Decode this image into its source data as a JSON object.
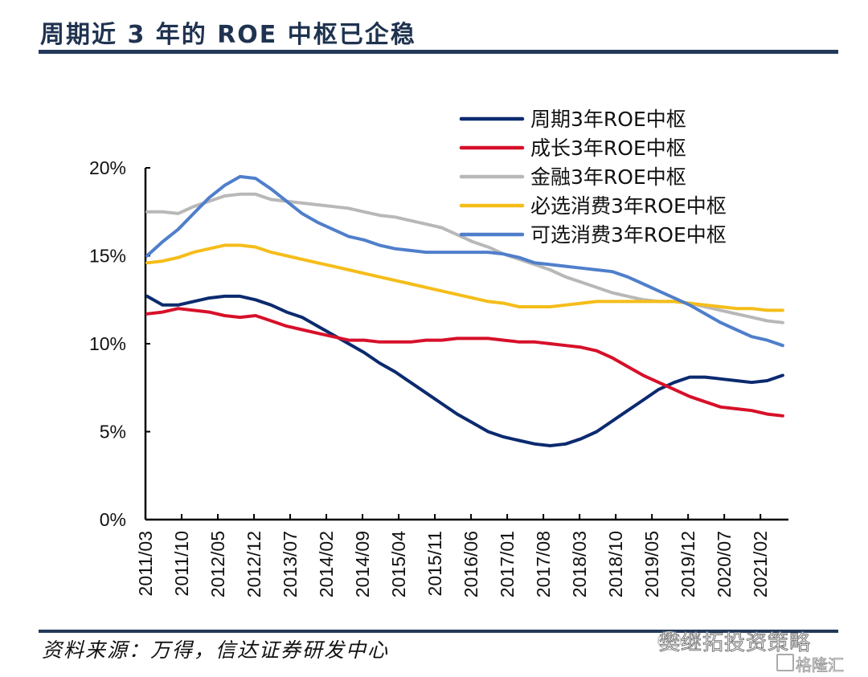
{
  "header": {
    "title": "周期近 3 年的 ROE 中枢已企稳"
  },
  "footer": {
    "source": "资料来源：万得，信达证券研发中心"
  },
  "watermark": {
    "account": "樊继拓投资策略",
    "site": "格隆汇"
  },
  "chart_data": {
    "type": "line",
    "title": "周期近 3 年的 ROE 中枢已企稳",
    "xlabel": "",
    "ylabel": "",
    "ylim": [
      0,
      20
    ],
    "yticks": [
      "0%",
      "5%",
      "10%",
      "15%",
      "20%"
    ],
    "ytick_values": [
      0,
      5,
      10,
      15,
      20
    ],
    "grid": false,
    "legend_position": "top-right",
    "x_tick_labels": [
      "2011/03",
      "2011/10",
      "2012/05",
      "2012/12",
      "2013/07",
      "2014/02",
      "2014/09",
      "2015/04",
      "2015/11",
      "2016/06",
      "2017/01",
      "2017/08",
      "2018/03",
      "2018/10",
      "2019/05",
      "2019/12",
      "2020/07",
      "2021/02"
    ],
    "x_tick_months": 7,
    "x": [
      "2011/03",
      "2011/06",
      "2011/09",
      "2011/12",
      "2012/03",
      "2012/06",
      "2012/09",
      "2012/12",
      "2013/03",
      "2013/06",
      "2013/09",
      "2013/12",
      "2014/03",
      "2014/06",
      "2014/09",
      "2014/12",
      "2015/03",
      "2015/06",
      "2015/09",
      "2015/12",
      "2016/03",
      "2016/06",
      "2016/09",
      "2016/12",
      "2017/03",
      "2017/06",
      "2017/09",
      "2017/12",
      "2018/03",
      "2018/06",
      "2018/09",
      "2018/12",
      "2019/03",
      "2019/06",
      "2019/09",
      "2019/12",
      "2020/03",
      "2020/06",
      "2020/09",
      "2020/12",
      "2021/03",
      "2021/06"
    ],
    "series": [
      {
        "name": "周期3年ROE中枢",
        "color": "#0b2a6f",
        "values": [
          12.7,
          12.2,
          12.2,
          12.4,
          12.6,
          12.7,
          12.7,
          12.5,
          12.2,
          11.8,
          11.5,
          11.0,
          10.5,
          10.0,
          9.5,
          8.9,
          8.4,
          7.8,
          7.2,
          6.6,
          6.0,
          5.5,
          5.0,
          4.7,
          4.5,
          4.3,
          4.2,
          4.3,
          4.6,
          5.0,
          5.6,
          6.2,
          6.8,
          7.4,
          7.8,
          8.1,
          8.1,
          8.0,
          7.9,
          7.8,
          7.9,
          8.2
        ]
      },
      {
        "name": "成长3年ROE中枢",
        "color": "#d7102a",
        "values": [
          11.7,
          11.8,
          12.0,
          11.9,
          11.8,
          11.6,
          11.5,
          11.6,
          11.3,
          11.0,
          10.8,
          10.6,
          10.4,
          10.2,
          10.2,
          10.1,
          10.1,
          10.1,
          10.2,
          10.2,
          10.3,
          10.3,
          10.3,
          10.2,
          10.1,
          10.1,
          10.0,
          9.9,
          9.8,
          9.6,
          9.2,
          8.7,
          8.2,
          7.8,
          7.4,
          7.0,
          6.7,
          6.4,
          6.3,
          6.2,
          6.0,
          5.9
        ]
      },
      {
        "name": "金融3年ROE中枢",
        "color": "#b8b8b8",
        "values": [
          17.5,
          17.5,
          17.4,
          17.8,
          18.1,
          18.4,
          18.5,
          18.5,
          18.2,
          18.1,
          18.0,
          17.9,
          17.8,
          17.7,
          17.5,
          17.3,
          17.2,
          17.0,
          16.8,
          16.6,
          16.2,
          15.8,
          15.5,
          15.1,
          14.8,
          14.5,
          14.2,
          13.8,
          13.5,
          13.2,
          12.9,
          12.7,
          12.5,
          12.4,
          12.4,
          12.3,
          12.1,
          11.9,
          11.7,
          11.5,
          11.3,
          11.2
        ]
      },
      {
        "name": "必选消费3年ROE中枢",
        "color": "#f5bd1a",
        "values": [
          14.6,
          14.7,
          14.9,
          15.2,
          15.4,
          15.6,
          15.6,
          15.5,
          15.2,
          15.0,
          14.8,
          14.6,
          14.4,
          14.2,
          14.0,
          13.8,
          13.6,
          13.4,
          13.2,
          13.0,
          12.8,
          12.6,
          12.4,
          12.3,
          12.1,
          12.1,
          12.1,
          12.2,
          12.3,
          12.4,
          12.4,
          12.4,
          12.4,
          12.4,
          12.4,
          12.3,
          12.2,
          12.1,
          12.0,
          12.0,
          11.9,
          11.9
        ]
      },
      {
        "name": "可选消费3年ROE中枢",
        "color": "#4f7fcb",
        "values": [
          15.0,
          15.8,
          16.5,
          17.4,
          18.3,
          19.0,
          19.5,
          19.4,
          18.8,
          18.1,
          17.4,
          16.9,
          16.5,
          16.1,
          15.9,
          15.6,
          15.4,
          15.3,
          15.2,
          15.2,
          15.2,
          15.2,
          15.2,
          15.1,
          14.9,
          14.6,
          14.5,
          14.4,
          14.3,
          14.2,
          14.1,
          13.8,
          13.4,
          13.0,
          12.6,
          12.2,
          11.7,
          11.2,
          10.8,
          10.4,
          10.2,
          9.9
        ]
      }
    ]
  }
}
